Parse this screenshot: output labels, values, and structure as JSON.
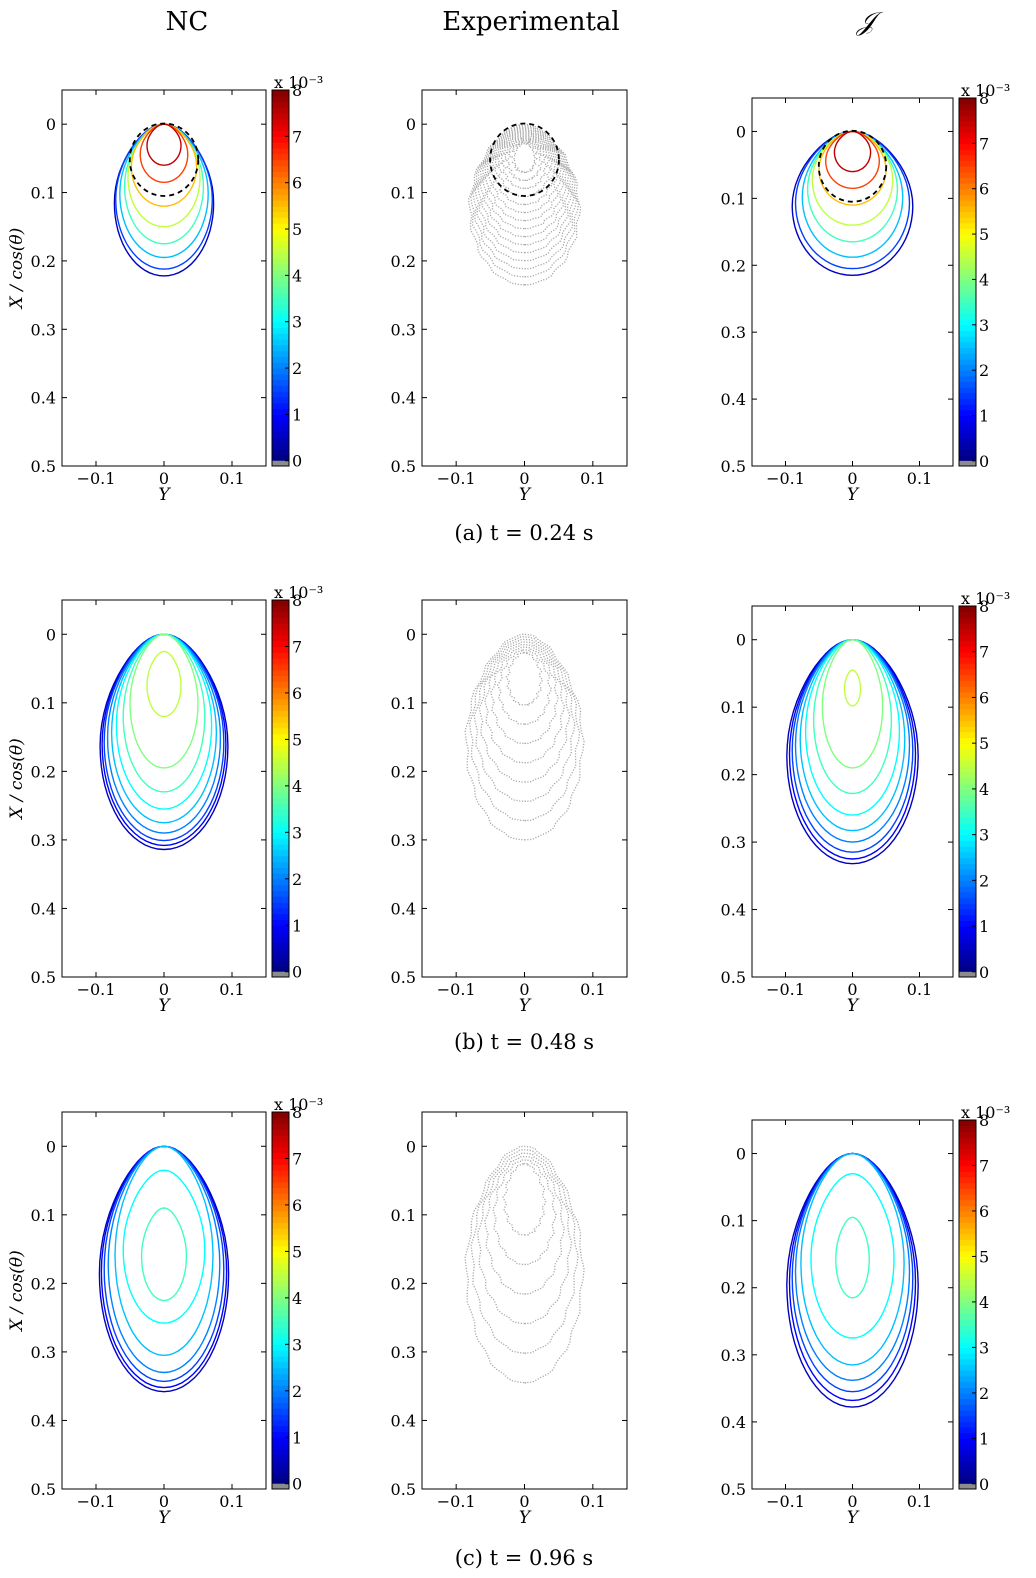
{
  "column_titles": [
    "NC",
    "Experimental",
    "𝒥"
  ],
  "captions": [
    "(a) t = 0.24 s",
    "(b) t = 0.48 s",
    "(c) t = 0.96 s"
  ],
  "axis_labels": {
    "x": "Y",
    "y": "X / cos(θ)"
  },
  "colorbar": {
    "multiplier": "x 10⁻³",
    "ticks": [
      "0",
      "1",
      "2",
      "3",
      "4",
      "5",
      "6",
      "7",
      "8"
    ],
    "colormap": "jet",
    "range": [
      0,
      0.008
    ]
  },
  "colors": {
    "experimental": "#a8a8a8",
    "marker_circle": "#000000",
    "zero_band": "#8c8c8c"
  },
  "chart_data": [
    {
      "type": "contour",
      "row": "a",
      "time_s": 0.24,
      "column": "NC",
      "xlim": [
        -0.15,
        0.15
      ],
      "ylim": [
        -0.05,
        0.5
      ],
      "y_reversed": true,
      "xticks": [
        "−0.1",
        "0",
        "0.1"
      ],
      "yticks": [
        "0",
        "0.1",
        "0.2",
        "0.3",
        "0.4",
        "0.5"
      ],
      "contour_levels": [
        {
          "level": 0.5,
          "halfwidth": 0.073,
          "bottom": 0.222
        },
        {
          "level": 1.5,
          "halfwidth": 0.071,
          "bottom": 0.212
        },
        {
          "level": 2.5,
          "halfwidth": 0.065,
          "bottom": 0.195
        },
        {
          "level": 3.5,
          "halfwidth": 0.058,
          "bottom": 0.175
        },
        {
          "level": 4.5,
          "halfwidth": 0.053,
          "bottom": 0.15
        },
        {
          "level": 5.5,
          "halfwidth": 0.048,
          "bottom": 0.12
        },
        {
          "level": 6.5,
          "halfwidth": 0.035,
          "bottom": 0.085
        },
        {
          "level": 7.5,
          "halfwidth": 0.025,
          "bottom": 0.06
        }
      ],
      "dashed_circle": {
        "center": 0.052,
        "radius": 0.053
      }
    },
    {
      "type": "contour",
      "row": "a",
      "time_s": 0.24,
      "column": "Experimental",
      "xlim": [
        -0.15,
        0.15
      ],
      "ylim": [
        -0.05,
        0.5
      ],
      "y_reversed": true,
      "xticks": [
        "−0.1",
        "0",
        "0.1"
      ],
      "yticks": [
        "0",
        "0.1",
        "0.2",
        "0.3",
        "0.4",
        "0.5"
      ],
      "contour_count": 15,
      "extent_halfwidth": 0.08,
      "extent_bottom": 0.235,
      "dashed_circle": {
        "center": 0.052,
        "radius": 0.053
      }
    },
    {
      "type": "contour",
      "row": "a",
      "time_s": 0.24,
      "column": "𝒥",
      "xlim": [
        -0.15,
        0.15
      ],
      "ylim": [
        -0.05,
        0.5
      ],
      "y_reversed": true,
      "xticks": [
        "−0.1",
        "0",
        "0.1"
      ],
      "yticks": [
        "0",
        "0.1",
        "0.2",
        "0.3",
        "0.4",
        "0.5"
      ],
      "contour_levels": [
        {
          "level": 0.5,
          "halfwidth": 0.09,
          "bottom": 0.215
        },
        {
          "level": 1.5,
          "halfwidth": 0.085,
          "bottom": 0.205
        },
        {
          "level": 2.5,
          "halfwidth": 0.075,
          "bottom": 0.188
        },
        {
          "level": 3.5,
          "halfwidth": 0.067,
          "bottom": 0.165
        },
        {
          "level": 4.5,
          "halfwidth": 0.06,
          "bottom": 0.14
        },
        {
          "level": 5.5,
          "halfwidth": 0.05,
          "bottom": 0.11
        },
        {
          "level": 6.5,
          "halfwidth": 0.04,
          "bottom": 0.085
        },
        {
          "level": 7.5,
          "halfwidth": 0.027,
          "bottom": 0.06
        }
      ],
      "dashed_circle": {
        "center": 0.052,
        "radius": 0.053
      }
    },
    {
      "type": "contour",
      "row": "b",
      "time_s": 0.48,
      "column": "NC",
      "xlim": [
        -0.15,
        0.15
      ],
      "ylim": [
        -0.05,
        0.5
      ],
      "y_reversed": true,
      "xticks": [
        "−0.1",
        "0",
        "0.1"
      ],
      "yticks": [
        "0",
        "0.1",
        "0.2",
        "0.3",
        "0.4",
        "0.5"
      ],
      "contour_levels": [
        {
          "level": 0.5,
          "halfwidth": 0.094,
          "bottom": 0.314
        },
        {
          "level": 1.0,
          "halfwidth": 0.091,
          "bottom": 0.308
        },
        {
          "level": 1.5,
          "halfwidth": 0.088,
          "bottom": 0.301
        },
        {
          "level": 2.0,
          "halfwidth": 0.083,
          "bottom": 0.29
        },
        {
          "level": 2.5,
          "halfwidth": 0.077,
          "bottom": 0.275
        },
        {
          "level": 3.0,
          "halfwidth": 0.07,
          "bottom": 0.255
        },
        {
          "level": 3.5,
          "halfwidth": 0.06,
          "bottom": 0.23
        },
        {
          "level": 4.0,
          "halfwidth": 0.05,
          "bottom": 0.195
        },
        {
          "level": 4.5,
          "halfwidth": 0.025,
          "top": 0.025,
          "bottom": 0.12
        }
      ]
    },
    {
      "type": "contour",
      "row": "b",
      "time_s": 0.48,
      "column": "Experimental",
      "xlim": [
        -0.15,
        0.15
      ],
      "ylim": [
        -0.05,
        0.5
      ],
      "y_reversed": true,
      "xticks": [
        "−0.1",
        "0",
        "0.1"
      ],
      "yticks": [
        "0",
        "0.1",
        "0.2",
        "0.3",
        "0.4",
        "0.5"
      ],
      "contour_count": 8,
      "extent_halfwidth": 0.085,
      "extent_bottom": 0.3
    },
    {
      "type": "contour",
      "row": "b",
      "time_s": 0.48,
      "column": "𝒥",
      "xlim": [
        -0.15,
        0.15
      ],
      "ylim": [
        -0.05,
        0.5
      ],
      "y_reversed": true,
      "xticks": [
        "−0.1",
        "0",
        "0.1"
      ],
      "yticks": [
        "0",
        "0.1",
        "0.2",
        "0.3",
        "0.4",
        "0.5"
      ],
      "contour_levels": [
        {
          "level": 0.5,
          "halfwidth": 0.098,
          "bottom": 0.332
        },
        {
          "level": 1.0,
          "halfwidth": 0.094,
          "bottom": 0.325
        },
        {
          "level": 1.5,
          "halfwidth": 0.09,
          "bottom": 0.315
        },
        {
          "level": 2.0,
          "halfwidth": 0.085,
          "bottom": 0.3
        },
        {
          "level": 2.5,
          "halfwidth": 0.078,
          "bottom": 0.283
        },
        {
          "level": 3.0,
          "halfwidth": 0.07,
          "bottom": 0.26
        },
        {
          "level": 3.5,
          "halfwidth": 0.058,
          "bottom": 0.228
        },
        {
          "level": 4.0,
          "halfwidth": 0.045,
          "bottom": 0.19
        },
        {
          "level": 4.5,
          "halfwidth": 0.012,
          "top": 0.045,
          "bottom": 0.098
        }
      ]
    },
    {
      "type": "contour",
      "row": "c",
      "time_s": 0.96,
      "column": "NC",
      "xlim": [
        -0.15,
        0.15
      ],
      "ylim": [
        -0.05,
        0.5
      ],
      "y_reversed": true,
      "xticks": [
        "−0.1",
        "0",
        "0.1"
      ],
      "yticks": [
        "0",
        "0.1",
        "0.2",
        "0.3",
        "0.4",
        "0.5"
      ],
      "contour_levels": [
        {
          "level": 0.5,
          "halfwidth": 0.095,
          "bottom": 0.358
        },
        {
          "level": 1.0,
          "halfwidth": 0.092,
          "bottom": 0.352
        },
        {
          "level": 1.5,
          "halfwidth": 0.088,
          "bottom": 0.343
        },
        {
          "level": 2.0,
          "halfwidth": 0.082,
          "bottom": 0.33
        },
        {
          "level": 2.5,
          "halfwidth": 0.072,
          "bottom": 0.305
        },
        {
          "level": 3.0,
          "halfwidth": 0.06,
          "top": 0.035,
          "bottom": 0.258
        },
        {
          "level": 3.5,
          "halfwidth": 0.033,
          "top": 0.09,
          "bottom": 0.225
        }
      ]
    },
    {
      "type": "contour",
      "row": "c",
      "time_s": 0.96,
      "column": "Experimental",
      "xlim": [
        -0.15,
        0.15
      ],
      "ylim": [
        -0.05,
        0.5
      ],
      "y_reversed": true,
      "xticks": [
        "−0.1",
        "0",
        "0.1"
      ],
      "yticks": [
        "0",
        "0.1",
        "0.2",
        "0.3",
        "0.4",
        "0.5"
      ],
      "contour_count": 6,
      "extent_halfwidth": 0.085,
      "extent_bottom": 0.345
    },
    {
      "type": "contour",
      "row": "c",
      "time_s": 0.96,
      "column": "𝒥",
      "xlim": [
        -0.15,
        0.15
      ],
      "ylim": [
        -0.05,
        0.5
      ],
      "y_reversed": true,
      "xticks": [
        "−0.1",
        "0",
        "0.1"
      ],
      "yticks": [
        "0",
        "0.1",
        "0.2",
        "0.3",
        "0.4",
        "0.5"
      ],
      "contour_levels": [
        {
          "level": 0.5,
          "halfwidth": 0.098,
          "bottom": 0.378
        },
        {
          "level": 1.0,
          "halfwidth": 0.094,
          "bottom": 0.368
        },
        {
          "level": 1.5,
          "halfwidth": 0.09,
          "bottom": 0.355
        },
        {
          "level": 2.0,
          "halfwidth": 0.085,
          "bottom": 0.338
        },
        {
          "level": 2.5,
          "halfwidth": 0.077,
          "bottom": 0.315
        },
        {
          "level": 3.0,
          "halfwidth": 0.062,
          "top": 0.03,
          "bottom": 0.275
        },
        {
          "level": 3.5,
          "halfwidth": 0.025,
          "top": 0.095,
          "bottom": 0.215
        }
      ]
    }
  ]
}
